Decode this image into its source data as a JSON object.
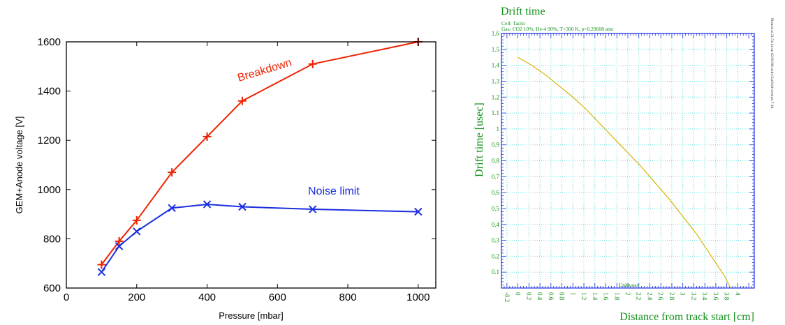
{
  "chart_data": [
    {
      "type": "line",
      "title": "",
      "xlabel": "Pressure [mbar]",
      "ylabel": "GEM+Anode voltage [V]",
      "xlim": [
        0,
        1050
      ],
      "ylim": [
        600,
        1600
      ],
      "xticks": [
        0,
        200,
        400,
        600,
        800,
        1000
      ],
      "yticks": [
        600,
        800,
        1000,
        1200,
        1400,
        1600
      ],
      "grid": false,
      "series": [
        {
          "name": "Breakdown",
          "color": "#ee2200",
          "marker": "plus",
          "x": [
            100,
            150,
            200,
            300,
            400,
            500,
            700,
            1000
          ],
          "y": [
            695,
            790,
            875,
            1070,
            1215,
            1360,
            1510,
            1600
          ]
        },
        {
          "name": "Noise limit",
          "color": "#1a2ee0",
          "marker": "x",
          "x": [
            100,
            150,
            200,
            300,
            400,
            500,
            700,
            1000
          ],
          "y": [
            665,
            770,
            830,
            925,
            940,
            930,
            920,
            910
          ]
        }
      ]
    },
    {
      "type": "line",
      "title": "Drift time",
      "subtitle_lines": [
        "Cell: Tactic",
        "Gas: CO2 10%, He-4 90%, T=300 K, p=0.29608 atm"
      ],
      "side_note": "Plotted at 21:54:14 on 02/03/00 with Garfield version 7.10.",
      "xlabel": "Distance from track start [cm]",
      "ylabel": "Drift time [usec]",
      "xlim": [
        -0.3,
        4.3
      ],
      "ylim": [
        0,
        1.6
      ],
      "xtick_labels": [
        "-0.2",
        "0",
        "0.2",
        "0.4",
        "0.6",
        "0.8",
        "1",
        "1.2",
        "1.4",
        "1.6",
        "1.8",
        "2",
        "2.2",
        "2.4",
        "2.6",
        "2.8",
        "3",
        "3.2",
        "3.4",
        "3.6",
        "3.8",
        "4"
      ],
      "ytick_labels": [
        "0.1",
        "0.2",
        "0.3",
        "0.4",
        "0.5",
        "0.6",
        "0.7",
        "0.8",
        "0.9",
        "1",
        "1.1",
        "1.2",
        "1.3",
        "1.4",
        "1.5",
        "1.6"
      ],
      "grid": true,
      "annotation": "Unknown",
      "colors": {
        "axes": "#1a2ee0",
        "text": "#12901a",
        "grid": "#66dddd",
        "curve": "#d9b400"
      },
      "series": [
        {
          "x": [
            0.0,
            0.25,
            0.5,
            0.75,
            1.0,
            1.25,
            1.5,
            1.75,
            2.0,
            2.25,
            2.5,
            2.75,
            3.0,
            3.25,
            3.5,
            3.75,
            3.87
          ],
          "y": [
            1.45,
            1.4,
            1.34,
            1.27,
            1.2,
            1.12,
            1.03,
            0.94,
            0.85,
            0.76,
            0.66,
            0.56,
            0.45,
            0.34,
            0.21,
            0.08,
            0.0
          ]
        }
      ]
    }
  ]
}
